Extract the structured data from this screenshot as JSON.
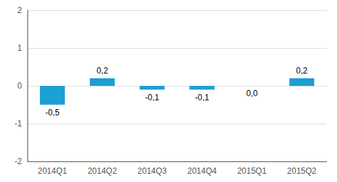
{
  "chart_data": {
    "type": "bar",
    "categories": [
      "2014Q1",
      "2014Q2",
      "2014Q3",
      "2014Q4",
      "2015Q1",
      "2015Q2"
    ],
    "values": [
      -0.5,
      0.2,
      -0.1,
      -0.1,
      0.0,
      0.2
    ],
    "value_labels": [
      "-0,5",
      "0,2",
      "-0,1",
      "-0,1",
      "0,0",
      "0,2"
    ],
    "data_labels": true,
    "color": "#1b9fd4",
    "ylim": [
      -2,
      2
    ],
    "yticks": [
      -2,
      -1,
      0,
      1,
      2
    ],
    "grid": true
  }
}
